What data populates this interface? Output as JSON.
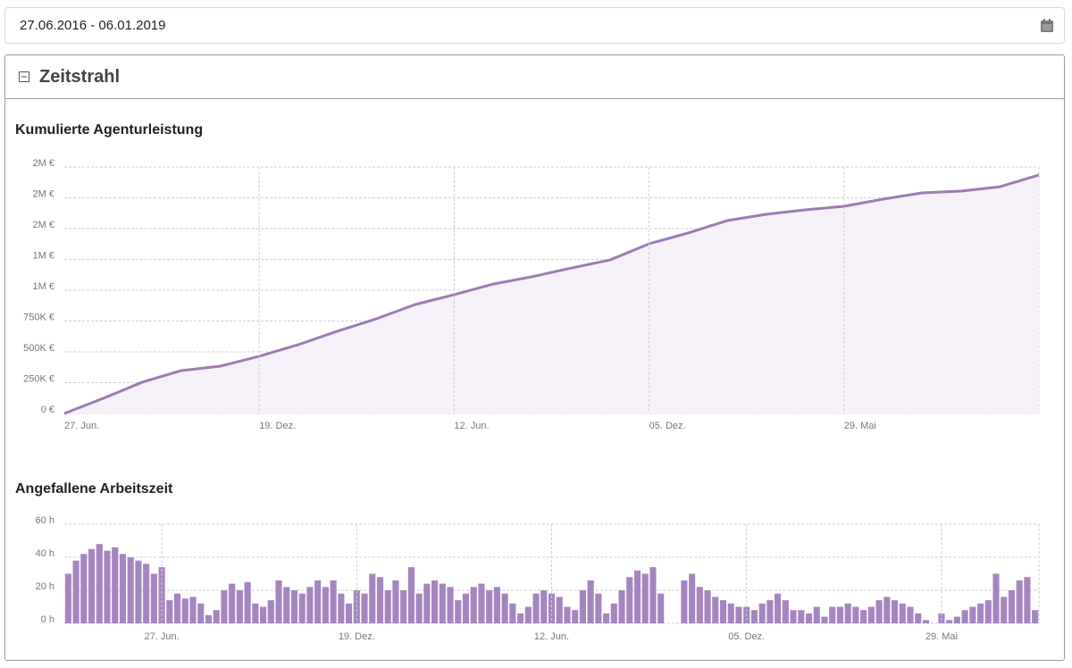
{
  "date_range": "27.06.2016 - 06.01.2019",
  "panel": {
    "title": "Zeitstrahl"
  },
  "chart_data": [
    {
      "type": "line",
      "title": "Kumulierte Agenturleistung",
      "color": "#9c7bb3",
      "fill": "#f6f0f8",
      "grid": true,
      "categories": [
        "27. Jun.",
        null,
        null,
        null,
        null,
        "19. Dez.",
        null,
        null,
        null,
        null,
        "12. Jun.",
        null,
        null,
        null,
        null,
        "05. Dez.",
        null,
        null,
        null,
        null,
        "29. Mai",
        null,
        null,
        null,
        null,
        null
      ],
      "values": [
        0,
        123000,
        254000,
        348000,
        384000,
        464000,
        558000,
        667000,
        768000,
        884000,
        964000,
        1050000,
        1110000,
        1180000,
        1246000,
        1377000,
        1464000,
        1565000,
        1616000,
        1652000,
        1681000,
        1739000,
        1790000,
        1804000,
        1840000,
        1935000
      ],
      "ylim": [
        0,
        2000000
      ],
      "yticks": [
        {
          "value": 0,
          "label": "0 €"
        },
        {
          "value": 250000,
          "label": "250K €"
        },
        {
          "value": 500000,
          "label": "500K €"
        },
        {
          "value": 750000,
          "label": "750K €"
        },
        {
          "value": 1000000,
          "label": "1M €"
        },
        {
          "value": 1250000,
          "label": "1M €"
        },
        {
          "value": 1500000,
          "label": "2M €"
        },
        {
          "value": 1750000,
          "label": "2M €"
        },
        {
          "value": 2000000,
          "label": "2M €"
        }
      ]
    },
    {
      "type": "bar",
      "title": "Angefallene Arbeitszeit",
      "color": "#a585bf",
      "grid": true,
      "categories": [
        null,
        null,
        null,
        null,
        null,
        null,
        null,
        null,
        null,
        null,
        null,
        null,
        "27. Jun.",
        null,
        null,
        null,
        null,
        null,
        null,
        null,
        null,
        null,
        null,
        null,
        null,
        null,
        null,
        null,
        null,
        null,
        null,
        null,
        null,
        null,
        null,
        null,
        null,
        "19. Dez.",
        null,
        null,
        null,
        null,
        null,
        null,
        null,
        null,
        null,
        null,
        null,
        null,
        null,
        null,
        null,
        null,
        null,
        null,
        null,
        null,
        null,
        null,
        null,
        null,
        "12. Jun.",
        null,
        null,
        null,
        null,
        null,
        null,
        null,
        null,
        null,
        null,
        null,
        null,
        null,
        null,
        null,
        null,
        null,
        null,
        null,
        null,
        null,
        null,
        null,
        null,
        "05. Dez.",
        null,
        null,
        null,
        null,
        null,
        null,
        null,
        null,
        null,
        null,
        null,
        null,
        null,
        null,
        null,
        null,
        null,
        null,
        null,
        null,
        null,
        null,
        null,
        null,
        "29. Mai",
        null,
        null,
        null,
        null,
        null,
        null,
        null,
        null,
        null,
        null,
        null,
        null
      ],
      "values": [
        30,
        38,
        42,
        45,
        48,
        44,
        46,
        42,
        40,
        38,
        36,
        30,
        34,
        14,
        18,
        15,
        16,
        12,
        5,
        8,
        20,
        24,
        20,
        25,
        12,
        10,
        14,
        26,
        22,
        20,
        18,
        22,
        26,
        22,
        26,
        18,
        12,
        20,
        18,
        30,
        28,
        20,
        26,
        20,
        34,
        18,
        24,
        26,
        24,
        22,
        14,
        18,
        22,
        24,
        20,
        22,
        18,
        12,
        6,
        10,
        18,
        20,
        18,
        16,
        10,
        8,
        20,
        26,
        18,
        6,
        12,
        20,
        28,
        32,
        30,
        34,
        18,
        0,
        0,
        26,
        30,
        22,
        20,
        16,
        14,
        12,
        10,
        10,
        8,
        12,
        14,
        18,
        14,
        8,
        8,
        6,
        10,
        4,
        10,
        10,
        12,
        10,
        8,
        10,
        14,
        16,
        14,
        12,
        10,
        6,
        2,
        0,
        6,
        2,
        4,
        8,
        10,
        12,
        14,
        30,
        16,
        20,
        26,
        28,
        8
      ],
      "ylim": [
        0,
        60
      ],
      "yticks": [
        {
          "value": 0,
          "label": "0 h"
        },
        {
          "value": 20,
          "label": "20 h"
        },
        {
          "value": 40,
          "label": "40 h"
        },
        {
          "value": 60,
          "label": "60 h"
        }
      ]
    }
  ]
}
